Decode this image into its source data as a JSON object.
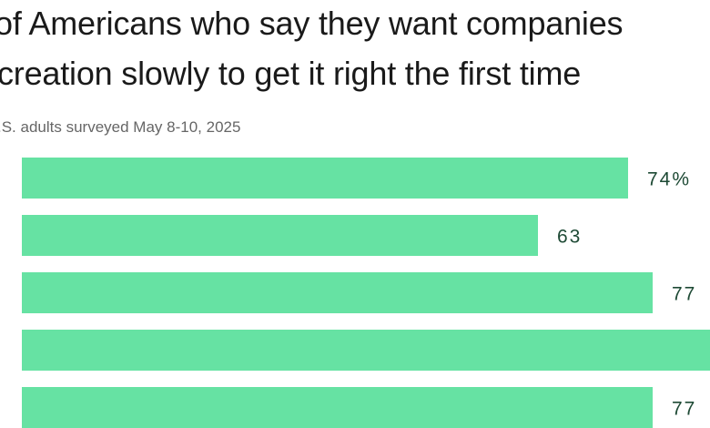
{
  "title": {
    "line1": "of Americans who say they want companies",
    "line2": "creation slowly to get it right the first time"
  },
  "subtitle": ".S. adults surveyed May 8-10, 2025",
  "colors": {
    "bar": "#66e2a3",
    "label": "#1e4a35"
  },
  "chart_data": {
    "type": "bar",
    "orientation": "horizontal",
    "values": [
      74,
      63,
      77,
      84,
      77
    ],
    "labels": [
      "74%",
      "63",
      "77",
      "",
      "77"
    ],
    "xlim": [
      0,
      100
    ]
  }
}
